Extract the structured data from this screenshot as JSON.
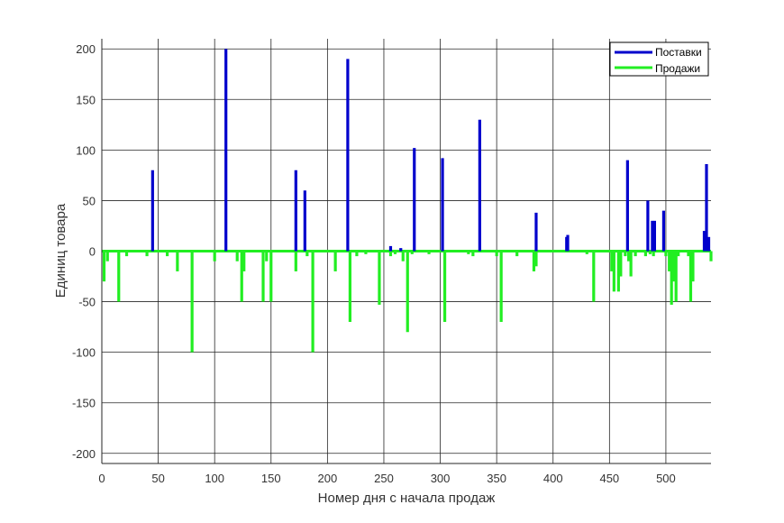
{
  "chart_data": {
    "type": "bar",
    "title": "",
    "xlabel": "Номер дня с начала продаж",
    "ylabel": "Единиц товара",
    "xlim": [
      0,
      540
    ],
    "ylim": [
      -210,
      210
    ],
    "xticks": [
      0,
      50,
      100,
      150,
      200,
      250,
      300,
      350,
      400,
      450,
      500
    ],
    "yticks": [
      200,
      150,
      100,
      50,
      0,
      -50,
      -100,
      -150,
      -200
    ],
    "grid": true,
    "legend_position": "top-right",
    "series": [
      {
        "name": "Поставки",
        "color": "#0000cc",
        "points": [
          [
            45,
            80
          ],
          [
            110,
            200
          ],
          [
            172,
            80
          ],
          [
            180,
            60
          ],
          [
            218,
            190
          ],
          [
            256,
            5
          ],
          [
            265,
            3
          ],
          [
            277,
            102
          ],
          [
            302,
            92
          ],
          [
            335,
            130
          ],
          [
            385,
            38
          ],
          [
            412,
            14
          ],
          [
            413,
            16
          ],
          [
            466,
            90
          ],
          [
            484,
            50
          ],
          [
            488,
            30
          ],
          [
            490,
            30
          ],
          [
            498,
            40
          ],
          [
            534,
            20
          ],
          [
            536,
            86
          ],
          [
            538,
            14
          ]
        ]
      },
      {
        "name": "Продажи",
        "color": "#22ee22",
        "points": [
          [
            2,
            -30
          ],
          [
            5,
            -10
          ],
          [
            15,
            -50
          ],
          [
            22,
            -5
          ],
          [
            40,
            -5
          ],
          [
            58,
            -5
          ],
          [
            67,
            -20
          ],
          [
            80,
            -100
          ],
          [
            100,
            -10
          ],
          [
            120,
            -10
          ],
          [
            124,
            -50
          ],
          [
            126,
            -20
          ],
          [
            143,
            -50
          ],
          [
            146,
            -10
          ],
          [
            150,
            -50
          ],
          [
            172,
            -20
          ],
          [
            182,
            -5
          ],
          [
            187,
            -100
          ],
          [
            207,
            -20
          ],
          [
            220,
            -70
          ],
          [
            226,
            -5
          ],
          [
            234,
            -3
          ],
          [
            246,
            -53
          ],
          [
            256,
            -5
          ],
          [
            260,
            -3
          ],
          [
            267,
            -10
          ],
          [
            271,
            -80
          ],
          [
            275,
            -3
          ],
          [
            290,
            -3
          ],
          [
            304,
            -70
          ],
          [
            325,
            -3
          ],
          [
            329,
            -5
          ],
          [
            350,
            -5
          ],
          [
            354,
            -70
          ],
          [
            368,
            -5
          ],
          [
            383,
            -20
          ],
          [
            385,
            -15
          ],
          [
            430,
            -3
          ],
          [
            436,
            -50
          ],
          [
            452,
            -20
          ],
          [
            454,
            -40
          ],
          [
            458,
            -40
          ],
          [
            460,
            -25
          ],
          [
            464,
            -5
          ],
          [
            467,
            -10
          ],
          [
            469,
            -25
          ],
          [
            473,
            -5
          ],
          [
            482,
            -5
          ],
          [
            486,
            -3
          ],
          [
            489,
            -5
          ],
          [
            500,
            -5
          ],
          [
            503,
            -20
          ],
          [
            505,
            -53
          ],
          [
            507,
            -30
          ],
          [
            509,
            -50
          ],
          [
            511,
            -5
          ],
          [
            520,
            -5
          ],
          [
            522,
            -50
          ],
          [
            524,
            -30
          ],
          [
            540,
            -10
          ]
        ]
      }
    ]
  }
}
